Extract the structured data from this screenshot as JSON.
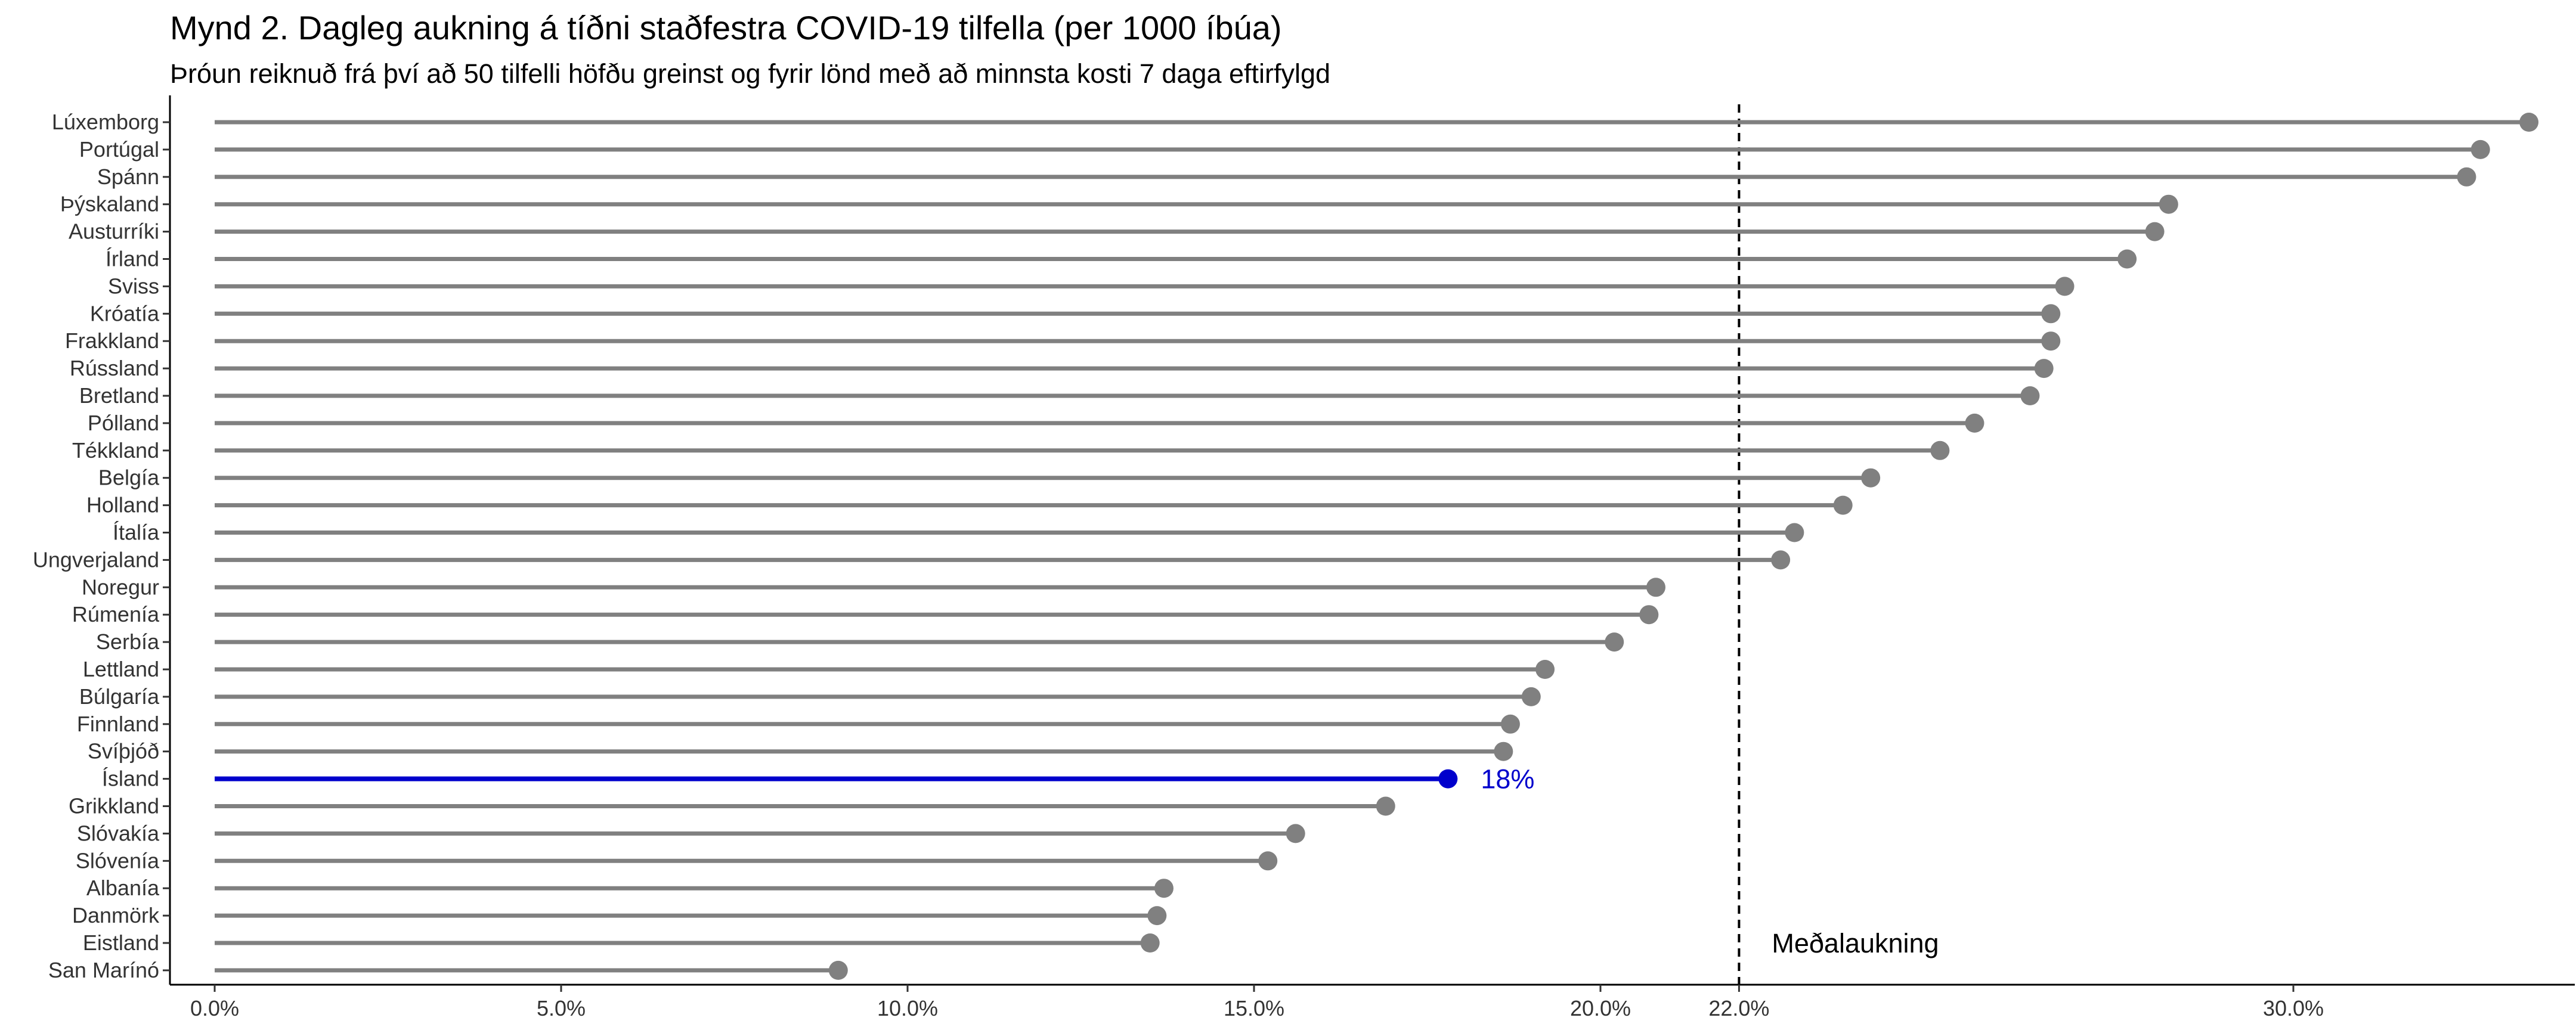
{
  "title": "Mynd 2. Dagleg aukning á tíðni staðfestra COVID-19 tilfella (per 1000 íbúa)",
  "subtitle": "Þróun reiknuð frá því að 50 tilfelli höfðu greinst og fyrir lönd með að minnsta kosti 7 daga eftirfylgd",
  "chart_data": {
    "type": "lollipop",
    "orientation": "horizontal",
    "categories": [
      "Lúxemborg",
      "Portúgal",
      "Spánn",
      "Þýskaland",
      "Austurríki",
      "Írland",
      "Sviss",
      "Króatía",
      "Frakkland",
      "Rússland",
      "Bretland",
      "Pólland",
      "Tékkland",
      "Belgía",
      "Holland",
      "Ítalía",
      "Ungverjaland",
      "Noregur",
      "Rúmenía",
      "Serbía",
      "Lettland",
      "Búlgaría",
      "Finnland",
      "Svíþjóð",
      "Ísland",
      "Grikkland",
      "Slóvakía",
      "Slóvenía",
      "Albanía",
      "Danmörk",
      "Eistland",
      "San Marínó"
    ],
    "values": [
      33.4,
      32.7,
      32.5,
      28.2,
      28.0,
      27.6,
      26.7,
      26.5,
      26.5,
      26.4,
      26.2,
      25.4,
      24.9,
      23.9,
      23.5,
      22.8,
      22.6,
      20.8,
      20.7,
      20.2,
      19.2,
      19.0,
      18.7,
      18.6,
      17.8,
      16.9,
      15.6,
      15.2,
      13.7,
      13.6,
      13.5,
      9.0
    ],
    "xlim": [
      0,
      34
    ],
    "x_ticks": [
      0,
      5,
      10,
      15,
      20,
      22,
      30
    ],
    "x_tick_labels": [
      "0.0%",
      "5.0%",
      "10.0%",
      "15.0%",
      "20.0%",
      "22.0%",
      "30.0%"
    ],
    "reference_line": {
      "value": 22,
      "label": "Meðalaukning",
      "style": "dashed"
    },
    "highlight": {
      "category": "Ísland",
      "label": "18%",
      "color": "#0000cc"
    },
    "default_color": "#808080",
    "grid": false
  }
}
